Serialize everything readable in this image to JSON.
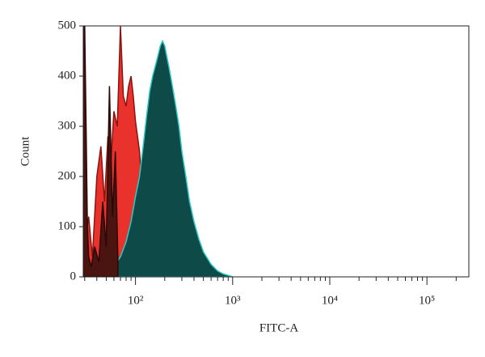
{
  "chart_data": {
    "type": "area",
    "xlabel": "FITC-A",
    "ylabel": "Count",
    "xscale": "log",
    "xlim": [
      29,
      270000
    ],
    "ylim": [
      0,
      500
    ],
    "xticks": [
      {
        "value": 100,
        "label": "10²"
      },
      {
        "value": 1000,
        "label": "10³"
      },
      {
        "value": 10000,
        "label": "10⁴"
      },
      {
        "value": 100000,
        "label": "10⁵"
      }
    ],
    "xminorticks": [
      30,
      40,
      50,
      60,
      70,
      80,
      90,
      200,
      300,
      400,
      500,
      600,
      700,
      800,
      900,
      2000,
      3000,
      4000,
      5000,
      6000,
      7000,
      8000,
      9000,
      20000,
      30000,
      40000,
      50000,
      60000,
      70000,
      80000,
      90000,
      200000
    ],
    "yticks": [
      0,
      100,
      200,
      300,
      400,
      500
    ],
    "series": [
      {
        "color": "#e8322b",
        "edge_color": "#8a1410",
        "x": [
          30,
          33,
          36,
          40,
          44,
          48,
          52,
          56,
          60,
          65,
          70,
          75,
          80,
          85,
          90,
          95,
          100,
          110,
          120,
          130
        ],
        "values": [
          60,
          120,
          40,
          200,
          260,
          150,
          280,
          230,
          330,
          300,
          500,
          360,
          340,
          380,
          400,
          360,
          310,
          250,
          150,
          50
        ]
      },
      {
        "color": "#0e4a47",
        "edge_color": "#2ec8c8",
        "x": [
          50,
          60,
          70,
          80,
          90,
          100,
          110,
          120,
          130,
          140,
          150,
          160,
          170,
          180,
          190,
          200,
          220,
          240,
          260,
          280,
          300,
          330,
          360,
          400,
          450,
          500,
          600,
          700,
          800,
          900,
          1000
        ],
        "values": [
          0,
          20,
          40,
          70,
          110,
          160,
          200,
          260,
          320,
          370,
          400,
          420,
          440,
          460,
          470,
          460,
          420,
          380,
          340,
          300,
          250,
          200,
          150,
          110,
          75,
          50,
          25,
          12,
          6,
          3,
          0
        ]
      },
      {
        "color": "#4a1410",
        "edge_color": "#2a0806",
        "x": [
          29,
          30,
          31,
          32,
          33,
          35,
          38,
          42,
          46,
          50,
          54,
          58,
          62,
          66
        ],
        "values": [
          500,
          500,
          300,
          100,
          40,
          20,
          60,
          30,
          150,
          60,
          380,
          120,
          250,
          30
        ]
      }
    ]
  }
}
